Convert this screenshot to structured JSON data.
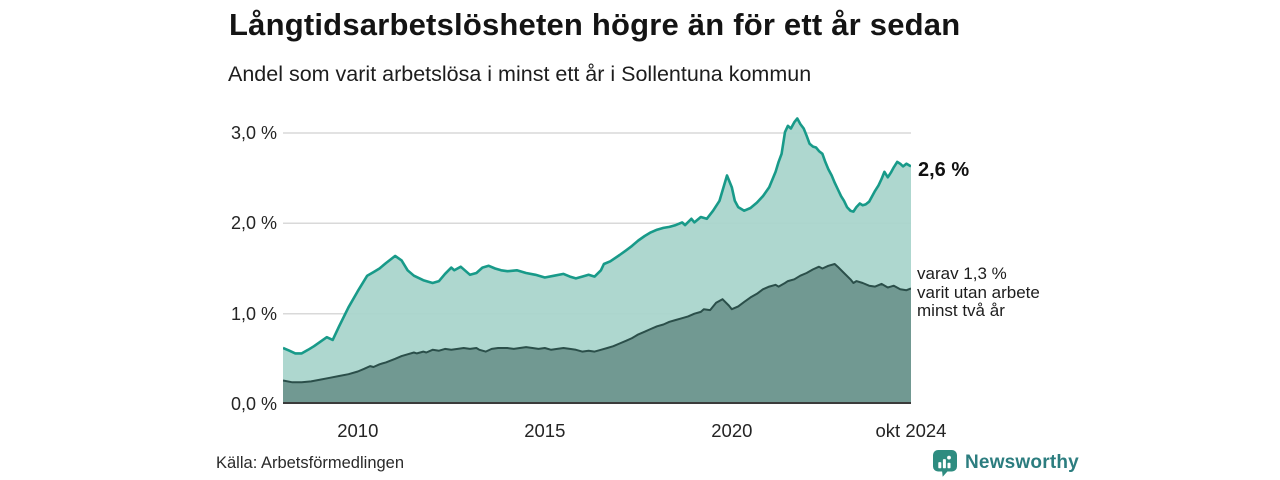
{
  "chart_data": {
    "type": "area",
    "title": "Långtidsarbetslösheten högre än för ett år sedan",
    "subtitle": "Andel som varit arbetslösa i minst ett år i Sollentuna kommun",
    "xlim": [
      2008.0,
      2024.79
    ],
    "ylim": [
      0,
      3.31
    ],
    "grid": true,
    "grid_color": "#d9d9d9",
    "axis_color": "#3b3b3b",
    "gridline_values": [
      1,
      2,
      3
    ],
    "yticks": [
      {
        "value": 0,
        "label": "0,0 %"
      },
      {
        "value": 1,
        "label": "1,0 %"
      },
      {
        "value": 2,
        "label": "2,0 %"
      },
      {
        "value": 3,
        "label": "3,0 %"
      }
    ],
    "xticks": [
      {
        "value": 2010,
        "label": "2010"
      },
      {
        "value": 2015,
        "label": "2015"
      },
      {
        "value": 2020,
        "label": "2020"
      },
      {
        "value": 2024.79,
        "label": "okt 2024"
      }
    ],
    "series": [
      {
        "name": "arbetslösa minst ett år",
        "color": "#189a89",
        "fill": "#a9d4cc",
        "fill_opacity": 0.94,
        "stroke_width": 2.6,
        "points": [
          [
            2008.0,
            0.62
          ],
          [
            2008.17,
            0.59
          ],
          [
            2008.33,
            0.56
          ],
          [
            2008.5,
            0.56
          ],
          [
            2008.67,
            0.6
          ],
          [
            2008.83,
            0.64
          ],
          [
            2009.0,
            0.69
          ],
          [
            2009.17,
            0.74
          ],
          [
            2009.33,
            0.71
          ],
          [
            2009.5,
            0.86
          ],
          [
            2009.75,
            1.07
          ],
          [
            2010.0,
            1.25
          ],
          [
            2010.25,
            1.42
          ],
          [
            2010.42,
            1.46
          ],
          [
            2010.58,
            1.5
          ],
          [
            2010.75,
            1.56
          ],
          [
            2011.0,
            1.64
          ],
          [
            2011.17,
            1.59
          ],
          [
            2011.33,
            1.48
          ],
          [
            2011.5,
            1.42
          ],
          [
            2011.75,
            1.37
          ],
          [
            2012.0,
            1.34
          ],
          [
            2012.17,
            1.36
          ],
          [
            2012.33,
            1.44
          ],
          [
            2012.5,
            1.51
          ],
          [
            2012.58,
            1.48
          ],
          [
            2012.75,
            1.52
          ],
          [
            2013.0,
            1.43
          ],
          [
            2013.17,
            1.45
          ],
          [
            2013.33,
            1.51
          ],
          [
            2013.5,
            1.53
          ],
          [
            2013.67,
            1.5
          ],
          [
            2013.83,
            1.48
          ],
          [
            2014.0,
            1.47
          ],
          [
            2014.25,
            1.48
          ],
          [
            2014.5,
            1.45
          ],
          [
            2014.75,
            1.43
          ],
          [
            2015.0,
            1.4
          ],
          [
            2015.25,
            1.42
          ],
          [
            2015.5,
            1.44
          ],
          [
            2015.67,
            1.41
          ],
          [
            2015.83,
            1.39
          ],
          [
            2016.0,
            1.41
          ],
          [
            2016.17,
            1.43
          ],
          [
            2016.33,
            1.41
          ],
          [
            2016.5,
            1.48
          ],
          [
            2016.58,
            1.55
          ],
          [
            2016.75,
            1.58
          ],
          [
            2017.0,
            1.65
          ],
          [
            2017.17,
            1.7
          ],
          [
            2017.33,
            1.75
          ],
          [
            2017.5,
            1.81
          ],
          [
            2017.67,
            1.86
          ],
          [
            2017.83,
            1.9
          ],
          [
            2018.0,
            1.93
          ],
          [
            2018.17,
            1.95
          ],
          [
            2018.33,
            1.96
          ],
          [
            2018.5,
            1.98
          ],
          [
            2018.67,
            2.01
          ],
          [
            2018.75,
            1.98
          ],
          [
            2018.92,
            2.05
          ],
          [
            2019.0,
            2.01
          ],
          [
            2019.17,
            2.07
          ],
          [
            2019.33,
            2.05
          ],
          [
            2019.5,
            2.14
          ],
          [
            2019.67,
            2.25
          ],
          [
            2019.87,
            2.53
          ],
          [
            2020.0,
            2.4
          ],
          [
            2020.08,
            2.25
          ],
          [
            2020.17,
            2.18
          ],
          [
            2020.33,
            2.14
          ],
          [
            2020.5,
            2.17
          ],
          [
            2020.67,
            2.23
          ],
          [
            2020.83,
            2.3
          ],
          [
            2021.0,
            2.4
          ],
          [
            2021.08,
            2.48
          ],
          [
            2021.17,
            2.57
          ],
          [
            2021.25,
            2.68
          ],
          [
            2021.33,
            2.77
          ],
          [
            2021.42,
            3.01
          ],
          [
            2021.5,
            3.08
          ],
          [
            2021.58,
            3.05
          ],
          [
            2021.67,
            3.12
          ],
          [
            2021.75,
            3.16
          ],
          [
            2021.83,
            3.1
          ],
          [
            2021.92,
            3.05
          ],
          [
            2022.0,
            2.97
          ],
          [
            2022.08,
            2.88
          ],
          [
            2022.17,
            2.85
          ],
          [
            2022.25,
            2.84
          ],
          [
            2022.33,
            2.8
          ],
          [
            2022.42,
            2.77
          ],
          [
            2022.5,
            2.68
          ],
          [
            2022.58,
            2.6
          ],
          [
            2022.67,
            2.53
          ],
          [
            2022.75,
            2.45
          ],
          [
            2022.83,
            2.38
          ],
          [
            2022.92,
            2.3
          ],
          [
            2023.0,
            2.25
          ],
          [
            2023.08,
            2.18
          ],
          [
            2023.17,
            2.14
          ],
          [
            2023.25,
            2.13
          ],
          [
            2023.33,
            2.18
          ],
          [
            2023.42,
            2.22
          ],
          [
            2023.5,
            2.2
          ],
          [
            2023.58,
            2.21
          ],
          [
            2023.67,
            2.24
          ],
          [
            2023.75,
            2.3
          ],
          [
            2023.83,
            2.36
          ],
          [
            2023.92,
            2.42
          ],
          [
            2024.0,
            2.49
          ],
          [
            2024.08,
            2.57
          ],
          [
            2024.17,
            2.51
          ],
          [
            2024.25,
            2.56
          ],
          [
            2024.33,
            2.62
          ],
          [
            2024.42,
            2.68
          ],
          [
            2024.5,
            2.66
          ],
          [
            2024.58,
            2.63
          ],
          [
            2024.67,
            2.66
          ],
          [
            2024.79,
            2.63
          ]
        ]
      },
      {
        "name": "varav arbetslösa minst två år",
        "color": "#2b4f4a",
        "fill": "#6e9790",
        "fill_opacity": 0.97,
        "stroke_width": 2,
        "points": [
          [
            2008.0,
            0.26
          ],
          [
            2008.25,
            0.24
          ],
          [
            2008.5,
            0.24
          ],
          [
            2008.75,
            0.25
          ],
          [
            2009.0,
            0.27
          ],
          [
            2009.25,
            0.29
          ],
          [
            2009.5,
            0.31
          ],
          [
            2009.75,
            0.33
          ],
          [
            2010.0,
            0.36
          ],
          [
            2010.17,
            0.39
          ],
          [
            2010.33,
            0.42
          ],
          [
            2010.42,
            0.41
          ],
          [
            2010.58,
            0.44
          ],
          [
            2010.75,
            0.46
          ],
          [
            2011.0,
            0.5
          ],
          [
            2011.17,
            0.53
          ],
          [
            2011.33,
            0.55
          ],
          [
            2011.5,
            0.57
          ],
          [
            2011.58,
            0.56
          ],
          [
            2011.75,
            0.58
          ],
          [
            2011.83,
            0.57
          ],
          [
            2012.0,
            0.6
          ],
          [
            2012.17,
            0.59
          ],
          [
            2012.33,
            0.61
          ],
          [
            2012.5,
            0.6
          ],
          [
            2012.67,
            0.61
          ],
          [
            2012.83,
            0.62
          ],
          [
            2013.0,
            0.61
          ],
          [
            2013.17,
            0.62
          ],
          [
            2013.25,
            0.6
          ],
          [
            2013.42,
            0.58
          ],
          [
            2013.58,
            0.61
          ],
          [
            2013.75,
            0.62
          ],
          [
            2014.0,
            0.62
          ],
          [
            2014.17,
            0.61
          ],
          [
            2014.33,
            0.62
          ],
          [
            2014.5,
            0.63
          ],
          [
            2014.67,
            0.62
          ],
          [
            2014.83,
            0.61
          ],
          [
            2015.0,
            0.62
          ],
          [
            2015.17,
            0.6
          ],
          [
            2015.33,
            0.61
          ],
          [
            2015.5,
            0.62
          ],
          [
            2015.67,
            0.61
          ],
          [
            2015.83,
            0.6
          ],
          [
            2016.0,
            0.58
          ],
          [
            2016.17,
            0.59
          ],
          [
            2016.33,
            0.58
          ],
          [
            2016.5,
            0.6
          ],
          [
            2016.67,
            0.62
          ],
          [
            2016.83,
            0.64
          ],
          [
            2017.0,
            0.67
          ],
          [
            2017.17,
            0.7
          ],
          [
            2017.33,
            0.73
          ],
          [
            2017.5,
            0.77
          ],
          [
            2017.67,
            0.8
          ],
          [
            2017.83,
            0.83
          ],
          [
            2018.0,
            0.86
          ],
          [
            2018.17,
            0.88
          ],
          [
            2018.33,
            0.91
          ],
          [
            2018.5,
            0.93
          ],
          [
            2018.67,
            0.95
          ],
          [
            2018.83,
            0.97
          ],
          [
            2019.0,
            1.0
          ],
          [
            2019.17,
            1.02
          ],
          [
            2019.25,
            1.05
          ],
          [
            2019.42,
            1.04
          ],
          [
            2019.58,
            1.12
          ],
          [
            2019.75,
            1.16
          ],
          [
            2019.92,
            1.09
          ],
          [
            2020.0,
            1.05
          ],
          [
            2020.17,
            1.08
          ],
          [
            2020.33,
            1.13
          ],
          [
            2020.5,
            1.18
          ],
          [
            2020.67,
            1.22
          ],
          [
            2020.83,
            1.27
          ],
          [
            2021.0,
            1.3
          ],
          [
            2021.17,
            1.32
          ],
          [
            2021.25,
            1.3
          ],
          [
            2021.42,
            1.34
          ],
          [
            2021.5,
            1.36
          ],
          [
            2021.67,
            1.38
          ],
          [
            2021.83,
            1.42
          ],
          [
            2022.0,
            1.45
          ],
          [
            2022.17,
            1.49
          ],
          [
            2022.33,
            1.52
          ],
          [
            2022.42,
            1.5
          ],
          [
            2022.58,
            1.53
          ],
          [
            2022.75,
            1.55
          ],
          [
            2022.83,
            1.52
          ],
          [
            2023.0,
            1.45
          ],
          [
            2023.17,
            1.38
          ],
          [
            2023.25,
            1.34
          ],
          [
            2023.33,
            1.36
          ],
          [
            2023.5,
            1.34
          ],
          [
            2023.67,
            1.31
          ],
          [
            2023.83,
            1.3
          ],
          [
            2024.0,
            1.33
          ],
          [
            2024.17,
            1.29
          ],
          [
            2024.33,
            1.31
          ],
          [
            2024.5,
            1.27
          ],
          [
            2024.67,
            1.26
          ],
          [
            2024.79,
            1.28
          ]
        ]
      }
    ],
    "annotations": {
      "end_value_label": "2,6 %",
      "secondary_label_lines": [
        "varav 1,3 %",
        "varit utan arbete",
        "minst två år"
      ]
    }
  },
  "footer": {
    "source": "Källa: Arbetsförmedlingen",
    "brand": "Newsworthy",
    "brand_color": "#2c7d7f",
    "icon_color": "#2e8c80",
    "icon_bar_color": "#ffffff"
  }
}
